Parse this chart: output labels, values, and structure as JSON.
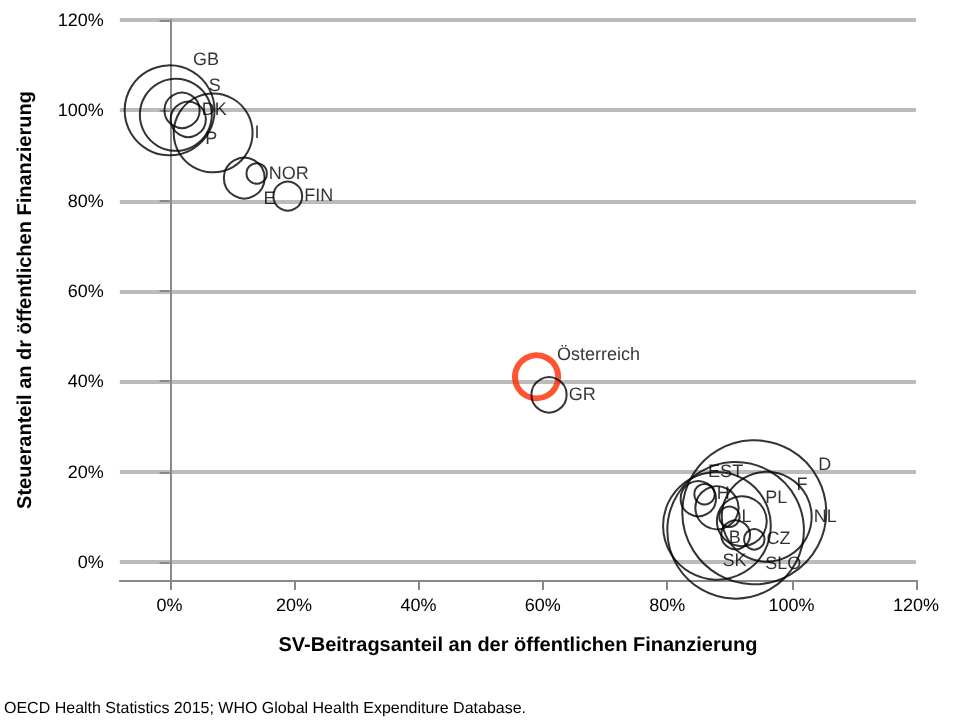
{
  "chart_data": {
    "type": "bubble",
    "xlabel": "SV-Beitragsanteil an der öffentlichen Finanzierung",
    "ylabel": "Steueranteil an dr öffentlichen Finanzierung",
    "annotations": [
      "OECD Health Statistics 2015; WHO Global Health Expenditure Database."
    ],
    "xlim": [
      -8,
      120
    ],
    "ylim": [
      -4,
      120
    ],
    "xticks": [
      {
        "value": 0,
        "label": "0%"
      },
      {
        "value": 20,
        "label": "20%"
      },
      {
        "value": 40,
        "label": "40%"
      },
      {
        "value": 60,
        "label": "60%"
      },
      {
        "value": 80,
        "label": "80%"
      },
      {
        "value": 100,
        "label": "100%"
      },
      {
        "value": 120,
        "label": "120%"
      }
    ],
    "yticks": [
      {
        "value": 0,
        "label": "0%"
      },
      {
        "value": 20,
        "label": "20%"
      },
      {
        "value": 40,
        "label": "40%"
      },
      {
        "value": 60,
        "label": "60%"
      },
      {
        "value": 80,
        "label": "80%"
      },
      {
        "value": 100,
        "label": "100%"
      },
      {
        "value": 120,
        "label": "120%"
      }
    ],
    "grid": "y",
    "legend": false,
    "series": [
      {
        "name": "D",
        "color": "#000000",
        "x": [
          94
        ],
        "values": [
          11
        ],
        "sizes": [
          1
        ]
      },
      {
        "name": "F",
        "color": "#000000",
        "x": [
          91
        ],
        "values": [
          7
        ],
        "sizes": [
          0.9
        ]
      },
      {
        "name": "SLO",
        "color": "#000000",
        "x": [
          88
        ],
        "values": [
          8
        ],
        "sizes": [
          0.56
        ]
      },
      {
        "name": "GB",
        "color": "#000000",
        "x": [
          0
        ],
        "values": [
          100
        ],
        "sizes": [
          0.39
        ]
      },
      {
        "name": "NL",
        "color": "#000000",
        "x": [
          96
        ],
        "values": [
          10
        ],
        "sizes": [
          0.39
        ]
      },
      {
        "name": "I",
        "color": "#000000",
        "x": [
          7
        ],
        "values": [
          95
        ],
        "sizes": [
          0.3
        ]
      },
      {
        "name": "S",
        "color": "#000000",
        "x": [
          1
        ],
        "values": [
          99
        ],
        "sizes": [
          0.25
        ]
      },
      {
        "name": "PL",
        "color": "#000000",
        "x": [
          92
        ],
        "values": [
          9
        ],
        "sizes": [
          0.12
        ]
      },
      {
        "name": "Österreich",
        "color": "#ff2a00",
        "x": [
          59
        ],
        "values": [
          41
        ],
        "sizes": [
          0.09
        ]
      },
      {
        "name": "B",
        "color": "#000000",
        "x": [
          88
        ],
        "values": [
          12
        ],
        "sizes": [
          0.09
        ]
      },
      {
        "name": "E",
        "color": "#000000",
        "x": [
          12
        ],
        "values": [
          85
        ],
        "sizes": [
          0.08
        ]
      },
      {
        "name": "DK",
        "color": "#000000",
        "x": [
          2
        ],
        "values": [
          100
        ],
        "sizes": [
          0.06
        ]
      },
      {
        "name": "P",
        "color": "#000000",
        "x": [
          3
        ],
        "values": [
          98
        ],
        "sizes": [
          0.06
        ]
      },
      {
        "name": "GR",
        "color": "#000000",
        "x": [
          61
        ],
        "values": [
          37
        ],
        "sizes": [
          0.06
        ]
      },
      {
        "name": "EST",
        "color": "#000000",
        "x": [
          85
        ],
        "values": [
          14
        ],
        "sizes": [
          0.06
        ]
      },
      {
        "name": "FIN",
        "color": "#000000",
        "x": [
          19
        ],
        "values": [
          81
        ],
        "sizes": [
          0.04
        ]
      },
      {
        "name": "SK",
        "color": "#000000",
        "x": [
          91
        ],
        "values": [
          6
        ],
        "sizes": [
          0.04
        ]
      },
      {
        "name": "NOR",
        "color": "#000000",
        "x": [
          14
        ],
        "values": [
          86
        ],
        "sizes": [
          0.02
        ]
      },
      {
        "name": "H",
        "color": "#000000",
        "x": [
          86
        ],
        "values": [
          15
        ],
        "sizes": [
          0.02
        ]
      },
      {
        "name": "L",
        "color": "#000000",
        "x": [
          90
        ],
        "values": [
          10
        ],
        "sizes": [
          0.02
        ]
      },
      {
        "name": "CZ",
        "color": "#000000",
        "x": [
          94
        ],
        "values": [
          5
        ],
        "sizes": [
          0.02
        ]
      }
    ]
  }
}
